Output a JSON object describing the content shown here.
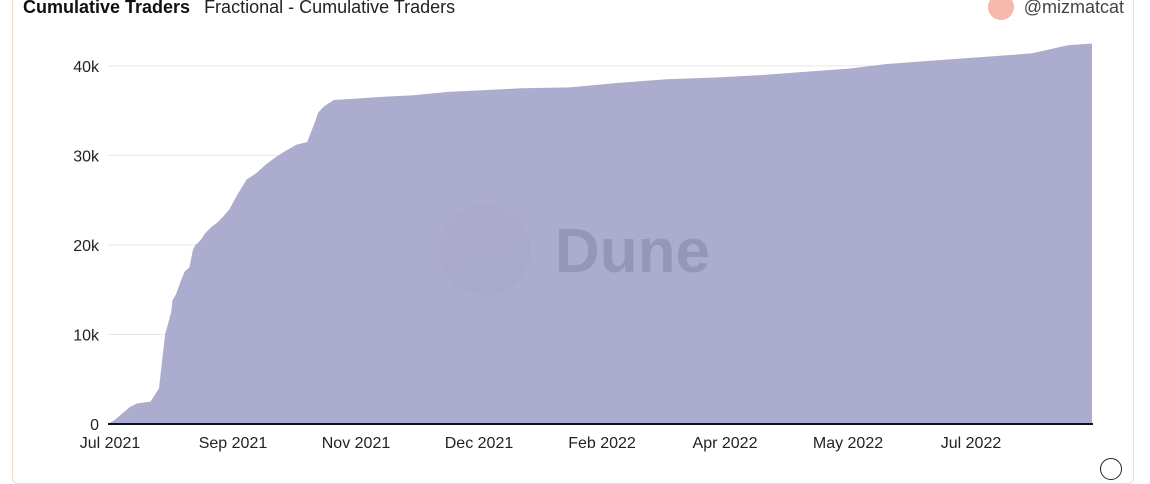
{
  "header": {
    "title": "Cumulative Traders",
    "subtitle": "Fractional - Cumulative Traders",
    "author": "@mizmatcat"
  },
  "watermark": {
    "text": "Dune"
  },
  "colors": {
    "area": "#a9a9cc",
    "grid": "#e6e6ee",
    "axis": "#111111",
    "avatar": "#f7b8ac",
    "logo_top": "#f0a7a0",
    "logo_bottom": "#8c8cb4",
    "watermark_text": "#8f8fb3"
  },
  "chart_data": {
    "type": "area",
    "title": "Cumulative Traders",
    "xlabel": "",
    "ylabel": "",
    "ylim": [
      0,
      42000
    ],
    "yticks": [
      0,
      10000,
      20000,
      30000,
      40000
    ],
    "ytick_labels": [
      "0",
      "10k",
      "20k",
      "30k",
      "40k"
    ],
    "xtick_labels": [
      "Jul 2021",
      "Sep 2021",
      "Nov 2021",
      "Dec 2021",
      "Feb 2022",
      "Apr 2022",
      "May 2022",
      "Jul 2022"
    ],
    "grid": true,
    "series": [
      {
        "x": [
          0.0,
          0.05,
          0.12,
          0.18,
          0.24,
          0.35,
          0.42,
          0.47,
          0.52,
          0.53,
          0.56,
          0.6,
          0.63,
          0.67,
          0.7,
          0.72,
          0.76,
          0.8,
          0.85,
          0.9,
          0.95,
          1.0,
          1.06,
          1.14,
          1.22,
          1.3,
          1.38,
          1.46,
          1.55,
          1.64,
          1.7,
          1.73,
          1.78,
          1.86,
          2.0,
          2.2,
          2.5,
          2.8,
          3.1,
          3.4,
          3.8,
          4.2,
          4.6,
          5.0,
          5.4,
          5.8,
          6.1,
          6.4,
          6.7,
          7.0,
          7.3,
          7.6,
          7.7,
          7.8,
          7.9,
          8.1
        ],
        "values": [
          0,
          400,
          1200,
          1900,
          2300,
          2500,
          4000,
          10000,
          12500,
          13800,
          14500,
          16000,
          17000,
          17500,
          19500,
          20000,
          20500,
          21300,
          22000,
          22500,
          23200,
          24000,
          25500,
          27300,
          28000,
          29000,
          29800,
          30500,
          31200,
          31500,
          33600,
          34800,
          35500,
          36200,
          36300,
          36500,
          36700,
          37100,
          37300,
          37500,
          37600,
          38100,
          38500,
          38700,
          39000,
          39400,
          39700,
          40200,
          40500,
          40800,
          41100,
          41400,
          41700,
          42000,
          42300,
          42500
        ]
      }
    ]
  }
}
